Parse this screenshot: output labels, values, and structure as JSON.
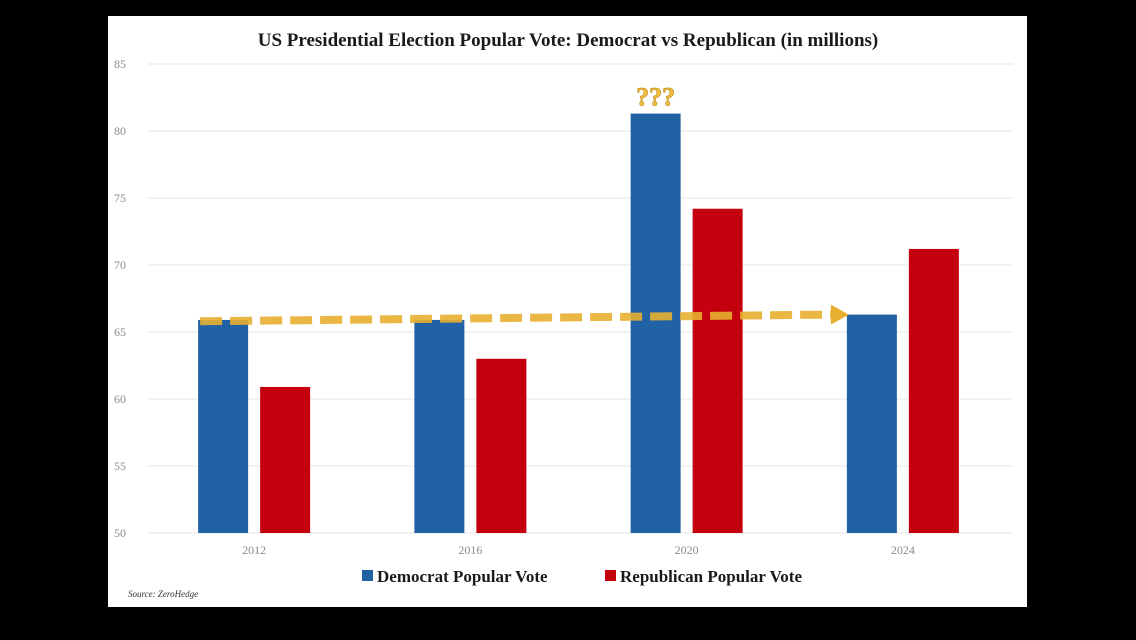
{
  "chart_data": {
    "type": "bar",
    "title": "US Presidential Election Popular Vote: Democrat vs Republican (in millions)",
    "categories": [
      "2012",
      "2016",
      "2020",
      "2024"
    ],
    "series": [
      {
        "name": "Democrat Popular Vote",
        "color": "#2161a5",
        "values": [
          65.9,
          65.9,
          81.3,
          66.3
        ]
      },
      {
        "name": "Republican Popular Vote",
        "color": "#c4000f",
        "values": [
          60.9,
          63.0,
          74.2,
          71.2
        ]
      }
    ],
    "ylim": [
      50,
      85
    ],
    "yticks": [
      "50",
      "55",
      "60",
      "65",
      "70",
      "75",
      "80",
      "85"
    ],
    "grid": true,
    "legend_position": "bottom",
    "annotations": {
      "question_marks": "???",
      "trend_arrow": {
        "from_value": 65.8,
        "to_value": 66.3,
        "color": "#e8b030"
      }
    },
    "source": "Source: ZeroHedge"
  }
}
